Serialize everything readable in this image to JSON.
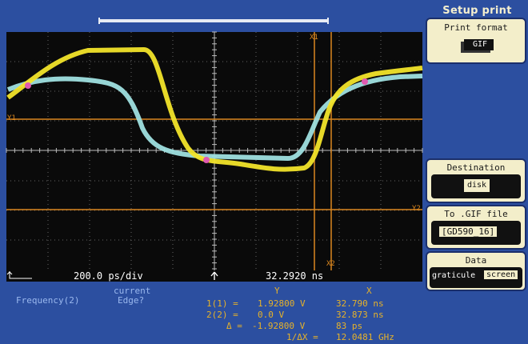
{
  "menu": {
    "title": "Setup print",
    "print_format_label": "Print format",
    "print_format_value": "GIF",
    "destination_label": "Destination",
    "destination_value": "disk",
    "file_label": "To .GIF file",
    "file_value": "[GD590_16]",
    "data_label": "Data",
    "data_options": [
      "graticule",
      "screen"
    ],
    "data_selected": "screen"
  },
  "status": {
    "timebase": "200.0 ps/div",
    "position": "32.2920 ns"
  },
  "markers": {
    "x1": "X1",
    "x2": "X2",
    "y1": "Y1",
    "y2": "Y2"
  },
  "measurement": {
    "function": "Frequency(2)",
    "mode_line1": "current",
    "mode_line2": "Edge?",
    "col_y": "Y",
    "col_x": "X",
    "rows": [
      {
        "label": "1(1) =",
        "y": "1.92800 V",
        "x": "32.790 ns"
      },
      {
        "label": "2(2) =",
        "y": "0.0 V",
        "x": "32.873 ns"
      },
      {
        "label": "Δ =",
        "y": "-1.92800 V",
        "x": "83 ps"
      }
    ],
    "inv_label": "1/ΔX =",
    "inv_value": "12.0481 GHz"
  },
  "colors": {
    "trace1": "#f2e42a",
    "trace2": "#9fe0e0",
    "overlap": "#e05ab0",
    "cursor": "#d9861f",
    "grid": "#8a8a8a"
  }
}
